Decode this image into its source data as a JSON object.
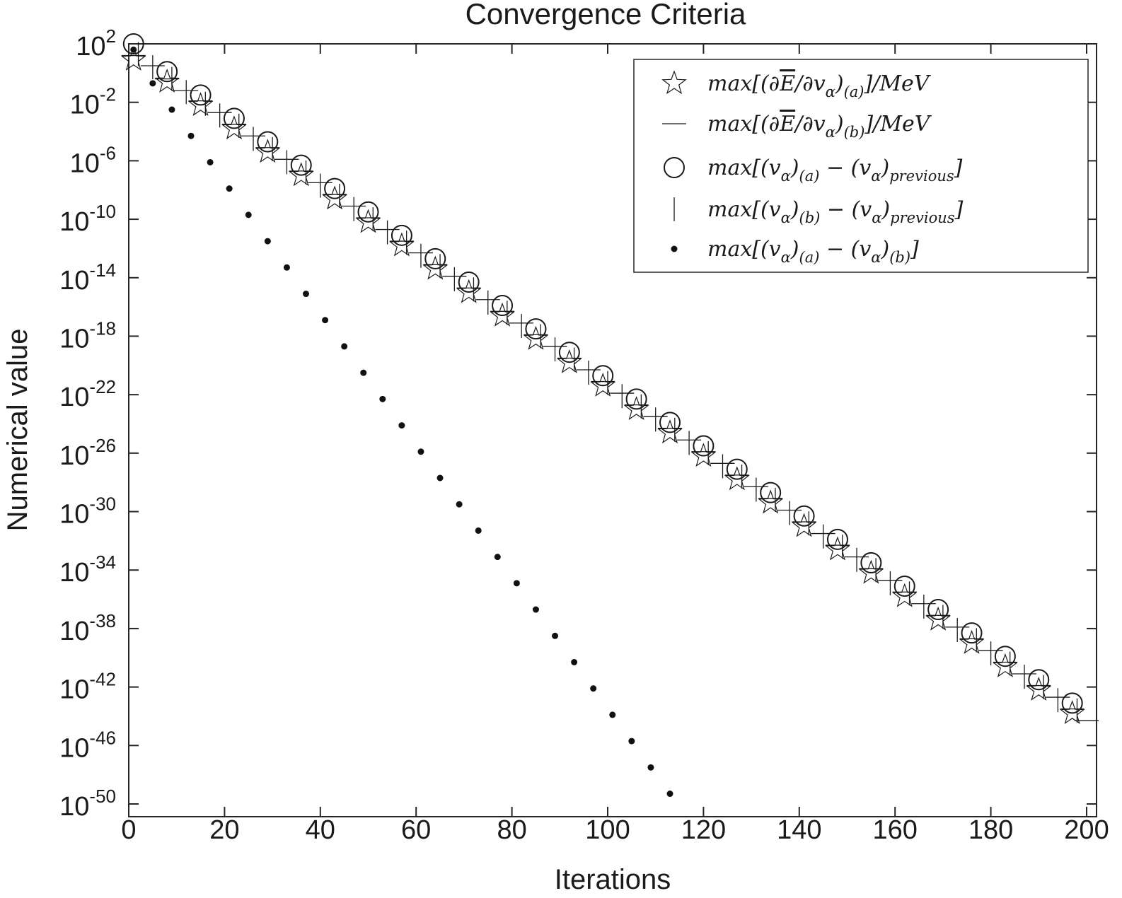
{
  "chart_data": {
    "type": "scatter",
    "title": "Convergence Criteria",
    "xlabel": "Iterations",
    "ylabel": "Numerical value",
    "xlim": [
      0,
      200
    ],
    "ylim_log10": [
      -50,
      3
    ],
    "y_scale": "log",
    "grid": false,
    "legend_position": "top-right",
    "x_ticks": [
      0,
      20,
      40,
      60,
      80,
      100,
      120,
      140,
      160,
      180,
      200
    ],
    "y_ticks": [
      {
        "exp": 2,
        "base": "10",
        "sup": "2"
      },
      {
        "exp": -2,
        "base": "10",
        "sup": "-2"
      },
      {
        "exp": -6,
        "base": "10",
        "sup": "-6"
      },
      {
        "exp": -10,
        "base": "10",
        "sup": "-10"
      },
      {
        "exp": -14,
        "base": "10",
        "sup": "-14"
      },
      {
        "exp": -18,
        "base": "10",
        "sup": "-18"
      },
      {
        "exp": -22,
        "base": "10",
        "sup": "-22"
      },
      {
        "exp": -26,
        "base": "10",
        "sup": "-26"
      },
      {
        "exp": -30,
        "base": "10",
        "sup": "-30"
      },
      {
        "exp": -34,
        "base": "10",
        "sup": "-34"
      },
      {
        "exp": -38,
        "base": "10",
        "sup": "-38"
      },
      {
        "exp": -42,
        "base": "10",
        "sup": "-42"
      },
      {
        "exp": -46,
        "base": "10",
        "sup": "-46"
      },
      {
        "exp": -50,
        "base": "10",
        "sup": "-50"
      }
    ],
    "series": [
      {
        "name": "max[(∂Ē/∂vα)(a)]/MeV",
        "marker": "star",
        "x": [
          1,
          8,
          15,
          22,
          29,
          36,
          43,
          50,
          57,
          64,
          71,
          78,
          85,
          92,
          99,
          106,
          113,
          120,
          127,
          134,
          141,
          148,
          155,
          162,
          169,
          176,
          183,
          190,
          197
        ],
        "log10_y": [
          0.9,
          -0.6,
          -2.2,
          -3.8,
          -5.4,
          -7.0,
          -8.6,
          -10.2,
          -11.8,
          -13.4,
          -15.0,
          -16.6,
          -18.2,
          -19.8,
          -21.4,
          -23.0,
          -24.6,
          -26.2,
          -27.8,
          -29.4,
          -31.0,
          -32.6,
          -34.2,
          -35.8,
          -37.4,
          -39.0,
          -40.6,
          -42.2,
          -43.8
        ]
      },
      {
        "name": "max[(∂Ē/∂vα)(b)]/MeV",
        "marker": "hline",
        "x": [
          1,
          5,
          8,
          12,
          15,
          19,
          22,
          26,
          29,
          33,
          36,
          40,
          43,
          47,
          50,
          54,
          57,
          61,
          64,
          68,
          71,
          75,
          78,
          82,
          85,
          89,
          92,
          96,
          99,
          103,
          106,
          110,
          113,
          117,
          120,
          124,
          127,
          131,
          134,
          138,
          141,
          145,
          148,
          152,
          155,
          159,
          162,
          166,
          169,
          173,
          176,
          180,
          183,
          187,
          190,
          194,
          197,
          200
        ],
        "log10_y": [
          1.2,
          0.5,
          -0.4,
          -1.2,
          -1.9,
          -2.7,
          -3.5,
          -4.3,
          -5.1,
          -5.9,
          -6.7,
          -7.5,
          -8.3,
          -9.1,
          -9.9,
          -10.7,
          -11.5,
          -12.3,
          -13.1,
          -13.9,
          -14.7,
          -15.5,
          -16.3,
          -17.1,
          -17.9,
          -18.7,
          -19.5,
          -20.3,
          -21.1,
          -21.9,
          -22.7,
          -23.5,
          -24.3,
          -25.1,
          -25.9,
          -26.7,
          -27.5,
          -28.3,
          -29.1,
          -29.9,
          -30.7,
          -31.5,
          -32.3,
          -33.1,
          -33.9,
          -34.7,
          -35.5,
          -36.3,
          -37.1,
          -37.9,
          -38.7,
          -39.5,
          -40.3,
          -41.1,
          -41.9,
          -42.7,
          -43.5,
          -44.3
        ]
      },
      {
        "name": "max[(vα)(a) − (vα)previous]",
        "marker": "circle",
        "x": [
          1,
          8,
          15,
          22,
          29,
          36,
          43,
          50,
          57,
          64,
          71,
          78,
          85,
          92,
          99,
          106,
          113,
          120,
          127,
          134,
          141,
          148,
          155,
          162,
          169,
          176,
          183,
          190,
          197
        ],
        "log10_y": [
          2.0,
          0.1,
          -1.5,
          -3.1,
          -4.7,
          -6.3,
          -7.9,
          -9.5,
          -11.1,
          -12.7,
          -14.3,
          -15.9,
          -17.5,
          -19.1,
          -20.7,
          -22.3,
          -23.9,
          -25.5,
          -27.1,
          -28.7,
          -30.3,
          -31.9,
          -33.5,
          -35.1,
          -36.7,
          -38.3,
          -39.9,
          -41.5,
          -43.1
        ]
      },
      {
        "name": "max[(vα)(b) − (vα)previous]",
        "marker": "vline",
        "x": [
          2,
          5,
          9,
          12,
          16,
          19,
          23,
          26,
          30,
          33,
          37,
          40,
          44,
          47,
          51,
          54,
          58,
          61,
          65,
          68,
          72,
          75,
          79,
          82,
          86,
          89,
          93,
          96,
          100,
          103,
          107,
          110,
          114,
          117,
          121,
          124,
          128,
          131,
          135,
          138,
          142,
          145,
          149,
          152,
          156,
          159,
          163,
          166,
          170,
          173,
          177,
          180,
          184,
          187,
          191,
          194,
          198
        ],
        "log10_y": [
          1.3,
          0.4,
          -0.4,
          -1.3,
          -2.1,
          -2.9,
          -3.6,
          -4.5,
          -5.2,
          -6.1,
          -6.8,
          -7.7,
          -8.4,
          -9.3,
          -10.0,
          -10.9,
          -11.6,
          -12.5,
          -13.2,
          -14.1,
          -14.8,
          -15.7,
          -16.4,
          -17.3,
          -18.0,
          -18.9,
          -19.6,
          -20.5,
          -21.2,
          -22.1,
          -22.8,
          -23.7,
          -24.4,
          -25.3,
          -26.0,
          -26.9,
          -27.6,
          -28.5,
          -29.2,
          -30.1,
          -30.8,
          -31.7,
          -32.4,
          -33.3,
          -34.0,
          -34.9,
          -35.6,
          -36.5,
          -37.2,
          -38.1,
          -38.8,
          -39.7,
          -40.4,
          -41.3,
          -42.0,
          -42.9,
          -43.6
        ]
      },
      {
        "name": "max[(vα)(a) − (vα)(b)]",
        "marker": "dot",
        "x": [
          1,
          5,
          9,
          13,
          17,
          21,
          25,
          29,
          33,
          37,
          41,
          45,
          49,
          53,
          57,
          61,
          65,
          69,
          73,
          77,
          81,
          85,
          89,
          93,
          97,
          101,
          105,
          109,
          113
        ],
        "log10_y": [
          1.6,
          -0.7,
          -2.5,
          -4.3,
          -6.1,
          -7.9,
          -9.7,
          -11.5,
          -13.3,
          -15.1,
          -16.9,
          -18.7,
          -20.5,
          -22.3,
          -24.1,
          -25.9,
          -27.7,
          -29.5,
          -31.3,
          -33.1,
          -34.9,
          -36.7,
          -38.5,
          -40.3,
          -42.1,
          -43.9,
          -45.7,
          -47.5,
          -49.3
        ]
      }
    ],
    "legend": [
      {
        "marker": "star",
        "parts": [
          {
            "t": "max[(∂"
          },
          {
            "t": "E",
            "over": true
          },
          {
            "t": "/∂v"
          },
          {
            "t": "α",
            "sub": true
          },
          {
            "t": ")"
          },
          {
            "t": "(a)",
            "sub": true
          },
          {
            "t": "]/MeV"
          }
        ]
      },
      {
        "marker": "hline",
        "parts": [
          {
            "t": "max[(∂"
          },
          {
            "t": "E",
            "over": true
          },
          {
            "t": "/∂v"
          },
          {
            "t": "α",
            "sub": true
          },
          {
            "t": ")"
          },
          {
            "t": "(b)",
            "sub": true
          },
          {
            "t": "]/MeV"
          }
        ]
      },
      {
        "marker": "circle",
        "parts": [
          {
            "t": "max[(v"
          },
          {
            "t": "α",
            "sub": true
          },
          {
            "t": ")"
          },
          {
            "t": "(a)",
            "sub": true
          },
          {
            "t": " − (v"
          },
          {
            "t": "α",
            "sub": true
          },
          {
            "t": ")"
          },
          {
            "t": "previous",
            "sub": true
          },
          {
            "t": "]"
          }
        ]
      },
      {
        "marker": "vline",
        "parts": [
          {
            "t": "max[(v"
          },
          {
            "t": "α",
            "sub": true
          },
          {
            "t": ")"
          },
          {
            "t": "(b)",
            "sub": true
          },
          {
            "t": " − (v"
          },
          {
            "t": "α",
            "sub": true
          },
          {
            "t": ")"
          },
          {
            "t": "previous",
            "sub": true
          },
          {
            "t": "]"
          }
        ]
      },
      {
        "marker": "dot",
        "parts": [
          {
            "t": "max[(v"
          },
          {
            "t": "α",
            "sub": true
          },
          {
            "t": ")"
          },
          {
            "t": "(a)",
            "sub": true
          },
          {
            "t": " − (v"
          },
          {
            "t": "α",
            "sub": true
          },
          {
            "t": ")"
          },
          {
            "t": "(b)",
            "sub": true
          },
          {
            "t": "]"
          }
        ]
      }
    ]
  }
}
